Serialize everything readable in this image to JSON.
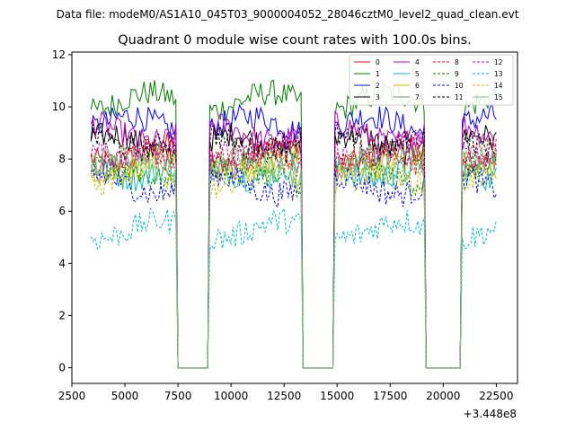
{
  "chart_data": {
    "type": "line",
    "suptitle": "Data file: modeM0/AS1A10_045T03_9000004052_28046cztM0_level2_quad_clean.evt",
    "title": "Quadrant 0 module wise count rates with 100.0s bins.",
    "xlabel": "",
    "ylabel": "",
    "x_offset_label": "+3.448e8",
    "xlim": [
      2500,
      23500
    ],
    "ylim": [
      -0.6,
      12.1
    ],
    "x_ticks": [
      2500,
      5000,
      7500,
      10000,
      12500,
      15000,
      17500,
      20000,
      22500
    ],
    "y_ticks": [
      0,
      2,
      4,
      6,
      8,
      10,
      12
    ],
    "bin_seconds": 100,
    "time_start": 3400,
    "time_end": 22500,
    "gaps": [
      [
        7400,
        9000
      ],
      [
        13300,
        14900
      ],
      [
        19100,
        20900
      ]
    ],
    "legend": {
      "placement": "top-right",
      "columns": 4
    },
    "series": [
      {
        "name": "0",
        "color": "#ff0000",
        "style": "solid",
        "level": 8.2
      },
      {
        "name": "1",
        "color": "#008000",
        "style": "solid",
        "level": 10.2
      },
      {
        "name": "2",
        "color": "#0000ff",
        "style": "solid",
        "level": 9.3
      },
      {
        "name": "3",
        "color": "#000000",
        "style": "solid",
        "level": 8.6
      },
      {
        "name": "4",
        "color": "#bf00bf",
        "style": "solid",
        "level": 9.0
      },
      {
        "name": "5",
        "color": "#00bfbf",
        "style": "solid",
        "level": 7.6
      },
      {
        "name": "6",
        "color": "#bfbf00",
        "style": "solid",
        "level": 7.8
      },
      {
        "name": "7",
        "color": "#808080",
        "style": "solid",
        "level": 7.9
      },
      {
        "name": "8",
        "color": "#ff0000",
        "style": "dashed",
        "level": 8.0
      },
      {
        "name": "9",
        "color": "#008000",
        "style": "dashed",
        "level": 7.4
      },
      {
        "name": "10",
        "color": "#0000ff",
        "style": "dashed",
        "level": 7.0
      },
      {
        "name": "11",
        "color": "#000000",
        "style": "dashed",
        "level": 8.7
      },
      {
        "name": "12",
        "color": "#bf00bf",
        "style": "dashed",
        "level": 8.4
      },
      {
        "name": "13",
        "color": "#00bfbf",
        "style": "dashed",
        "level": 5.3
      },
      {
        "name": "14",
        "color": "#bfbf00",
        "style": "dashed",
        "level": 7.2
      },
      {
        "name": "15",
        "color": "#80c080",
        "style": "solid",
        "level": 7.7
      }
    ]
  }
}
